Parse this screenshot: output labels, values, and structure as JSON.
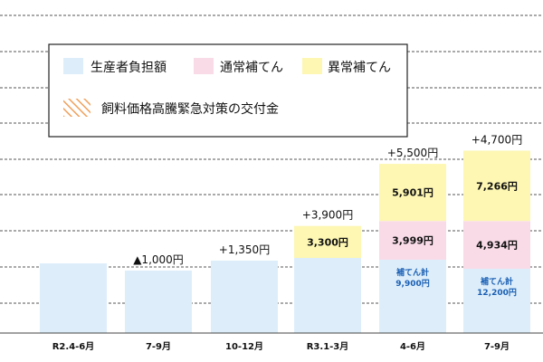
{
  "chart_data": {
    "type": "bar",
    "stacked": true,
    "categories": [
      "R2.4-6月",
      "7-9月",
      "10-12月",
      "R3.1-3月",
      "4-6月",
      "7-9月"
    ],
    "series": [
      {
        "name": "生産者負担額",
        "color": "#ddeefa",
        "values": [
          null,
          null,
          null,
          null,
          null,
          null
        ]
      },
      {
        "name": "通常補てん",
        "color": "#f9dbe8",
        "values": [
          null,
          null,
          null,
          null,
          3999,
          4934
        ]
      },
      {
        "name": "異常補てん",
        "color": "#fdf7b3",
        "values": [
          null,
          null,
          null,
          3300,
          5901,
          7266
        ]
      }
    ],
    "segment_labels": [
      [],
      [],
      [],
      [
        "3,300円"
      ],
      [
        "3,999円",
        "5,901円"
      ],
      [
        "4,934円",
        "7,266円"
      ]
    ],
    "top_labels": [
      "",
      "▲1,000円",
      "+1,350円",
      "+3,900円",
      "+5,500円",
      "+4,700円"
    ],
    "subtotal_labels": [
      null,
      null,
      null,
      null,
      {
        "line1": "補てん計",
        "line2": "9,900円"
      },
      {
        "line1": "補てん計",
        "line2": "12,200円"
      }
    ],
    "legend": {
      "items": [
        "生産者負担額",
        "通常補てん",
        "異常補てん"
      ],
      "hatched_item": "飼料価格高騰緊急対策の交付金",
      "hatch_color": "#f0a05a"
    }
  }
}
